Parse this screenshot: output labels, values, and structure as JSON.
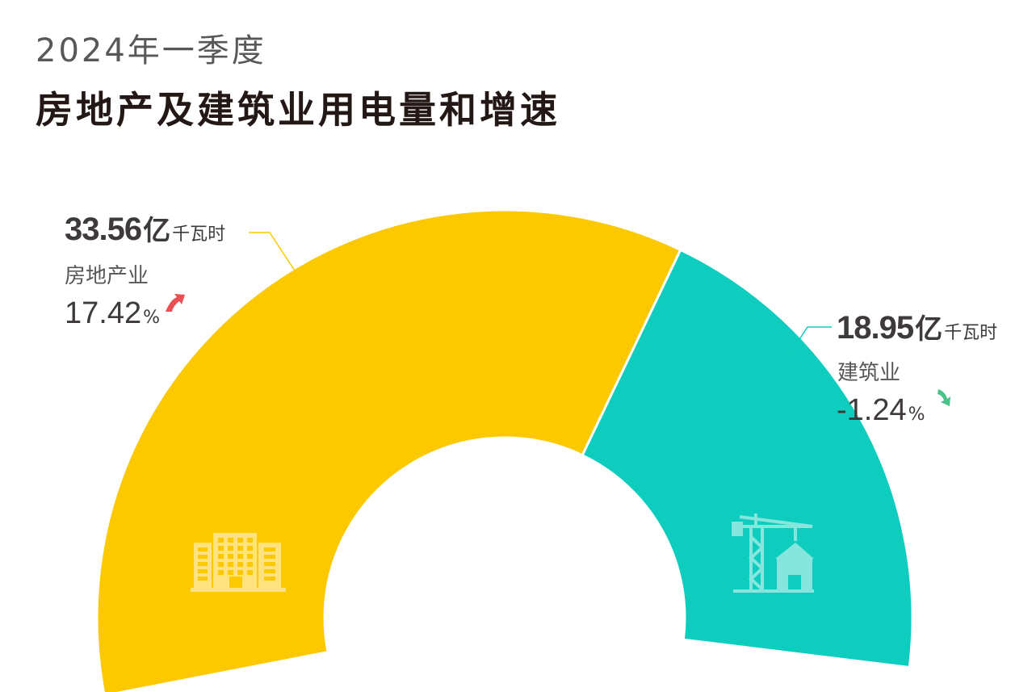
{
  "header": {
    "subtitle": "2024年一季度",
    "title": "房地产及建筑业用电量和增速"
  },
  "chart_data": {
    "type": "pie",
    "unit": "亿千瓦时",
    "series": [
      {
        "name": "房地产业",
        "value_label": "33.56",
        "value": 33.56,
        "unit_yi": "亿",
        "unit_small": "千瓦时",
        "growth_label": "17.42",
        "growth_sign": "%",
        "growth": 17.42,
        "direction": "up",
        "color": "#FCC800",
        "icon": "building-icon"
      },
      {
        "name": "建筑业",
        "value_label": "18.95",
        "value": 18.95,
        "unit_yi": "亿",
        "unit_small": "千瓦时",
        "growth_label": "-1.24",
        "growth_sign": "%",
        "growth": -1.24,
        "direction": "down",
        "color": "#0ECDBE",
        "icon": "construction-crane-icon"
      }
    ],
    "colors": {
      "up_arrow": "#EA4F52",
      "down_arrow": "#4BC28A",
      "leader_line_1": "#FCC800",
      "leader_line_2": "#0ECDBE"
    }
  }
}
